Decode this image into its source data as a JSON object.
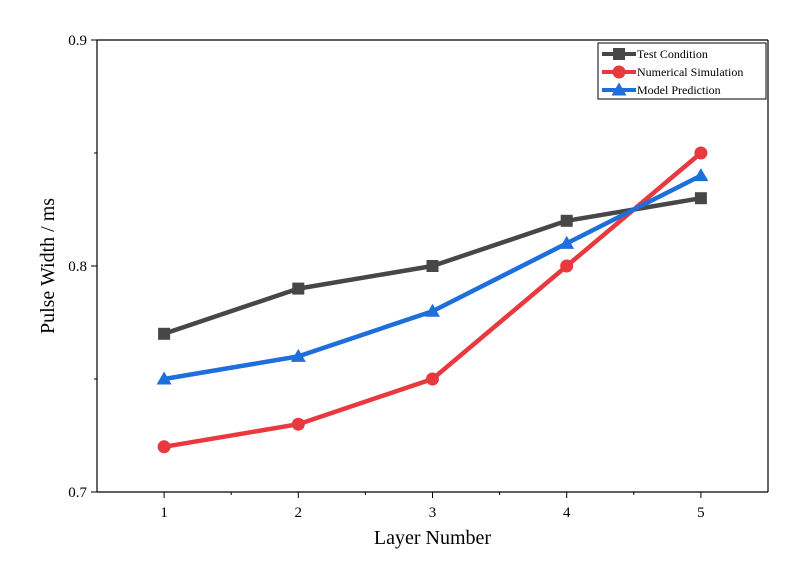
{
  "chart_data": {
    "type": "line",
    "title": "",
    "xlabel": "Layer Number",
    "ylabel": "Pulse Width / ms",
    "x": [
      1,
      2,
      3,
      4,
      5
    ],
    "x_tick_labels": [
      "1",
      "2",
      "3",
      "4",
      "5"
    ],
    "xlim": [
      0.5,
      5.5
    ],
    "y_tick_labels": [
      "0.7",
      "0.8",
      "0.9"
    ],
    "y_ticks": [
      0.7,
      0.8,
      0.9
    ],
    "ylim": [
      0.7,
      0.9
    ],
    "grid": false,
    "legend_position": "top-right",
    "series": [
      {
        "name": "Test Condition",
        "values": [
          0.77,
          0.79,
          0.8,
          0.82,
          0.83
        ],
        "color": "#474747",
        "marker": "square"
      },
      {
        "name": "Numerical Simulation",
        "values": [
          0.72,
          0.73,
          0.75,
          0.8,
          0.85
        ],
        "color": "#e8393f",
        "marker": "circle"
      },
      {
        "name": "Model Prediction",
        "values": [
          0.75,
          0.76,
          0.78,
          0.81,
          0.84
        ],
        "color": "#1e6fdc",
        "marker": "triangle"
      }
    ]
  }
}
